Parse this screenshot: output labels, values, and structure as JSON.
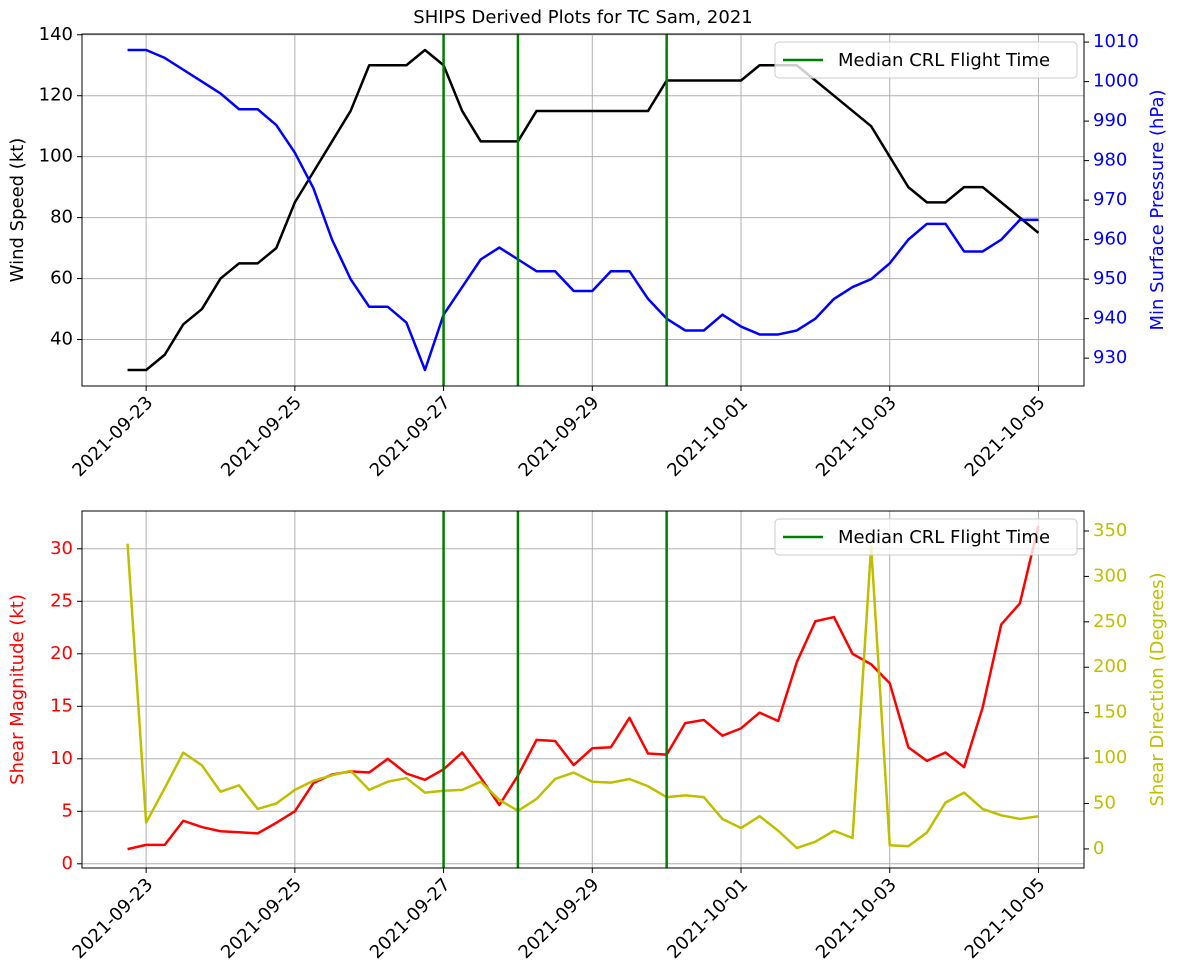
{
  "chart_data": [
    {
      "type": "line",
      "title": "SHIPS Derived Plots for TC Sam, 2021",
      "ylabel": "Wind Speed (kt)",
      "y2label": "Min Surface Pressure (hPa)",
      "x": [
        "2021-09-22T18:00",
        "2021-09-23T00:00",
        "2021-09-23T06:00",
        "2021-09-23T12:00",
        "2021-09-23T18:00",
        "2021-09-24T00:00",
        "2021-09-24T06:00",
        "2021-09-24T12:00",
        "2021-09-24T18:00",
        "2021-09-25T00:00",
        "2021-09-25T06:00",
        "2021-09-25T12:00",
        "2021-09-25T18:00",
        "2021-09-26T00:00",
        "2021-09-26T06:00",
        "2021-09-26T12:00",
        "2021-09-26T18:00",
        "2021-09-27T00:00",
        "2021-09-27T06:00",
        "2021-09-27T12:00",
        "2021-09-27T18:00",
        "2021-09-28T00:00",
        "2021-09-28T06:00",
        "2021-09-28T12:00",
        "2021-09-28T18:00",
        "2021-09-29T00:00",
        "2021-09-29T06:00",
        "2021-09-29T12:00",
        "2021-09-29T18:00",
        "2021-09-30T00:00",
        "2021-09-30T06:00",
        "2021-09-30T12:00",
        "2021-09-30T18:00",
        "2021-10-01T00:00",
        "2021-10-01T06:00",
        "2021-10-01T12:00",
        "2021-10-01T18:00",
        "2021-10-02T00:00",
        "2021-10-02T06:00",
        "2021-10-02T12:00",
        "2021-10-02T18:00",
        "2021-10-03T00:00",
        "2021-10-03T06:00",
        "2021-10-03T12:00",
        "2021-10-03T18:00",
        "2021-10-04T00:00",
        "2021-10-04T06:00",
        "2021-10-04T12:00",
        "2021-10-04T18:00",
        "2021-10-05T00:00"
      ],
      "series": [
        {
          "color": "#000000",
          "values": [
            30,
            30,
            35,
            45,
            50,
            60,
            65,
            65,
            70,
            85,
            95,
            105,
            115,
            130,
            130,
            130,
            135,
            130,
            115,
            105,
            105,
            105,
            115,
            115,
            115,
            115,
            115,
            115,
            115,
            125,
            125,
            125,
            125,
            125,
            130,
            130,
            130,
            125,
            120,
            115,
            110,
            100,
            90,
            85,
            85,
            90,
            90,
            85,
            80,
            75
          ]
        },
        {
          "color": "#0000ff",
          "axis": "y2",
          "values": [
            1008,
            1008,
            1006,
            1003,
            1000,
            997,
            993,
            993,
            989,
            982,
            973,
            960,
            950,
            943,
            943,
            939,
            927,
            941,
            948,
            955,
            958,
            955,
            952,
            952,
            947,
            947,
            952,
            952,
            945,
            940,
            937,
            937,
            941,
            938,
            936,
            936,
            937,
            940,
            945,
            948,
            950,
            954,
            960,
            964,
            964,
            957,
            957,
            960,
            965,
            965
          ]
        }
      ],
      "vlines": {
        "name": "Median CRL Flight Time",
        "color": "#008000",
        "x": [
          "2021-09-27T00:00",
          "2021-09-28T00:00",
          "2021-09-30T00:00"
        ]
      },
      "legend": "upper right",
      "grid": true,
      "xlim": [
        "2021-09-22T03:18",
        "2021-10-05T14:42"
      ],
      "xticks": [
        "2021-09-23",
        "2021-09-25",
        "2021-09-27",
        "2021-09-29",
        "2021-10-01",
        "2021-10-03",
        "2021-10-05"
      ],
      "ylim": [
        24.75,
        140.25
      ],
      "yticks": [
        40,
        60,
        80,
        100,
        120,
        140
      ],
      "y2lim": [
        922.95,
        1012.05
      ],
      "y2ticks": [
        930,
        940,
        950,
        960,
        970,
        980,
        990,
        1000,
        1010
      ]
    },
    {
      "type": "line",
      "ylabel": "Shear Magnitude (kt)",
      "y2label": "Shear Direction (Degrees)",
      "x": [
        "2021-09-22T18:00",
        "2021-09-23T00:00",
        "2021-09-23T06:00",
        "2021-09-23T12:00",
        "2021-09-23T18:00",
        "2021-09-24T00:00",
        "2021-09-24T06:00",
        "2021-09-24T12:00",
        "2021-09-24T18:00",
        "2021-09-25T00:00",
        "2021-09-25T06:00",
        "2021-09-25T12:00",
        "2021-09-25T18:00",
        "2021-09-26T00:00",
        "2021-09-26T06:00",
        "2021-09-26T12:00",
        "2021-09-26T18:00",
        "2021-09-27T00:00",
        "2021-09-27T06:00",
        "2021-09-27T12:00",
        "2021-09-27T18:00",
        "2021-09-28T00:00",
        "2021-09-28T06:00",
        "2021-09-28T12:00",
        "2021-09-28T18:00",
        "2021-09-29T00:00",
        "2021-09-29T06:00",
        "2021-09-29T12:00",
        "2021-09-29T18:00",
        "2021-09-30T00:00",
        "2021-09-30T06:00",
        "2021-09-30T12:00",
        "2021-09-30T18:00",
        "2021-10-01T00:00",
        "2021-10-01T06:00",
        "2021-10-01T12:00",
        "2021-10-01T18:00",
        "2021-10-02T00:00",
        "2021-10-02T06:00",
        "2021-10-02T12:00",
        "2021-10-02T18:00",
        "2021-10-03T00:00",
        "2021-10-03T06:00",
        "2021-10-03T12:00",
        "2021-10-03T18:00",
        "2021-10-04T00:00",
        "2021-10-04T06:00",
        "2021-10-04T12:00",
        "2021-10-04T18:00",
        "2021-10-05T00:00"
      ],
      "series": [
        {
          "color": "#ff0000",
          "values": [
            1.4,
            1.8,
            1.8,
            4.1,
            3.5,
            3.1,
            3.0,
            2.9,
            3.9,
            5.0,
            7.7,
            8.5,
            8.8,
            8.7,
            10.0,
            8.6,
            8.0,
            9.0,
            10.6,
            8.2,
            5.6,
            8.4,
            11.8,
            11.7,
            9.4,
            11.0,
            11.1,
            13.9,
            10.5,
            10.4,
            13.4,
            13.7,
            12.2,
            12.9,
            14.4,
            13.6,
            19.2,
            23.1,
            23.5,
            20.0,
            19.0,
            17.2,
            11.1,
            9.8,
            10.6,
            9.2,
            14.9,
            22.8,
            24.8,
            32.2
          ]
        },
        {
          "color": "#bfbf00",
          "axis": "y2",
          "values": [
            336,
            29,
            67,
            106,
            92,
            63,
            70,
            44,
            50,
            65,
            75,
            81,
            86,
            65,
            74,
            78,
            62,
            64,
            65,
            74,
            54,
            42,
            55,
            77,
            84,
            74,
            73,
            77,
            69,
            57,
            59,
            57,
            33,
            23,
            36,
            20,
            1,
            8,
            20,
            12,
            333,
            4,
            3,
            18,
            51,
            62,
            44,
            37,
            33,
            36
          ]
        }
      ],
      "vlines": {
        "name": "Median CRL Flight Time",
        "color": "#008000",
        "x": [
          "2021-09-27T00:00",
          "2021-09-28T00:00",
          "2021-09-30T00:00"
        ]
      },
      "legend": "upper right",
      "grid": true,
      "xlim": [
        "2021-09-22T03:18",
        "2021-10-05T14:42"
      ],
      "xticks": [
        "2021-09-23",
        "2021-09-25",
        "2021-09-27",
        "2021-09-29",
        "2021-10-01",
        "2021-10-03",
        "2021-10-05"
      ],
      "ylim": [
        -0.4,
        33.6
      ],
      "yticks": [
        0,
        5,
        10,
        15,
        20,
        25,
        30
      ],
      "y2lim": [
        -21,
        372
      ],
      "y2ticks": [
        0,
        50,
        100,
        150,
        200,
        250,
        300,
        350
      ]
    }
  ]
}
